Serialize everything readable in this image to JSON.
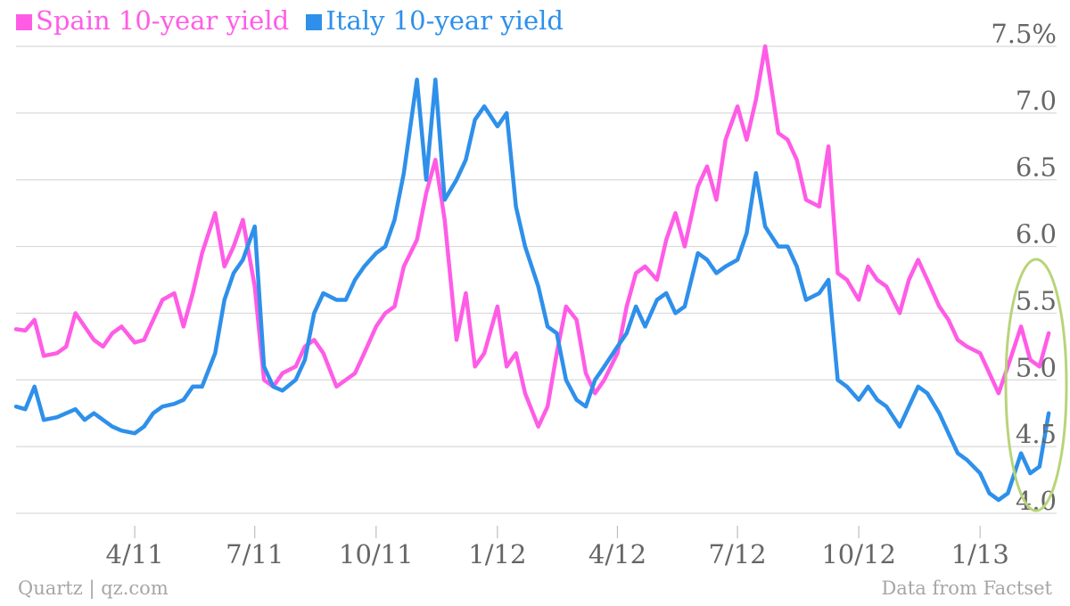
{
  "colors": {
    "spain": "#ff5ce6",
    "italy": "#2e90ea",
    "highlight_ellipse": "#b8d47a",
    "grid": "#d9d9d9",
    "tick_label": "#666666",
    "footer": "#a6a6a6"
  },
  "footer": {
    "source_left": "Quartz | qz.com",
    "source_right": "Data from Factset"
  },
  "chart_data": {
    "type": "line",
    "title": "",
    "xlabel": "",
    "ylabel": "",
    "ylim": [
      4.0,
      7.5
    ],
    "yticks": [
      {
        "value": 7.5,
        "label": "7.5%"
      },
      {
        "value": 7.0,
        "label": "7.0"
      },
      {
        "value": 6.5,
        "label": "6.5"
      },
      {
        "value": 6.0,
        "label": "6.0"
      },
      {
        "value": 5.5,
        "label": "5.5"
      },
      {
        "value": 5.0,
        "label": "5.0"
      },
      {
        "value": 4.5,
        "label": "4.5"
      },
      {
        "value": 4.0,
        "label": "4.0"
      }
    ],
    "xlim": [
      "2011-01-01",
      "2013-02-28"
    ],
    "xticks": [
      {
        "date": "2011-04-01",
        "label": "4/11"
      },
      {
        "date": "2011-07-01",
        "label": "7/11"
      },
      {
        "date": "2011-10-01",
        "label": "10/11"
      },
      {
        "date": "2012-01-01",
        "label": "1/12"
      },
      {
        "date": "2012-04-01",
        "label": "4/12"
      },
      {
        "date": "2012-07-01",
        "label": "7/12"
      },
      {
        "date": "2012-10-01",
        "label": "10/12"
      },
      {
        "date": "2013-01-01",
        "label": "1/13"
      }
    ],
    "grid": true,
    "legend_position": "top-left",
    "annotation": "ellipse highlighting Jan-Feb 2013",
    "series": [
      {
        "name": "Spain 10-year yield",
        "x": [
          "2011-01-01",
          "2011-01-08",
          "2011-01-15",
          "2011-01-22",
          "2011-02-01",
          "2011-02-08",
          "2011-02-15",
          "2011-02-22",
          "2011-03-01",
          "2011-03-08",
          "2011-03-15",
          "2011-03-22",
          "2011-04-01",
          "2011-04-08",
          "2011-04-15",
          "2011-04-22",
          "2011-05-01",
          "2011-05-08",
          "2011-05-15",
          "2011-05-22",
          "2011-06-01",
          "2011-06-08",
          "2011-06-15",
          "2011-06-22",
          "2011-07-01",
          "2011-07-08",
          "2011-07-15",
          "2011-07-22",
          "2011-08-01",
          "2011-08-08",
          "2011-08-15",
          "2011-08-22",
          "2011-09-01",
          "2011-09-08",
          "2011-09-15",
          "2011-09-22",
          "2011-10-01",
          "2011-10-08",
          "2011-10-15",
          "2011-10-22",
          "2011-11-01",
          "2011-11-08",
          "2011-11-15",
          "2011-11-22",
          "2011-12-01",
          "2011-12-08",
          "2011-12-15",
          "2011-12-22",
          "2012-01-01",
          "2012-01-08",
          "2012-01-15",
          "2012-01-22",
          "2012-02-01",
          "2012-02-08",
          "2012-02-15",
          "2012-02-22",
          "2012-03-01",
          "2012-03-08",
          "2012-03-15",
          "2012-03-22",
          "2012-04-01",
          "2012-04-08",
          "2012-04-15",
          "2012-04-22",
          "2012-05-01",
          "2012-05-08",
          "2012-05-15",
          "2012-05-22",
          "2012-06-01",
          "2012-06-08",
          "2012-06-15",
          "2012-06-22",
          "2012-07-01",
          "2012-07-08",
          "2012-07-15",
          "2012-07-22",
          "2012-08-01",
          "2012-08-08",
          "2012-08-15",
          "2012-08-22",
          "2012-09-01",
          "2012-09-08",
          "2012-09-15",
          "2012-09-22",
          "2012-10-01",
          "2012-10-08",
          "2012-10-15",
          "2012-10-22",
          "2012-11-01",
          "2012-11-08",
          "2012-11-15",
          "2012-11-22",
          "2012-12-01",
          "2012-12-08",
          "2012-12-15",
          "2012-12-22",
          "2013-01-01",
          "2013-01-08",
          "2013-01-15",
          "2013-01-22",
          "2013-02-01",
          "2013-02-08",
          "2013-02-15",
          "2013-02-22"
        ],
        "values": [
          5.38,
          5.37,
          5.45,
          5.18,
          5.2,
          5.25,
          5.5,
          5.4,
          5.3,
          5.25,
          5.35,
          5.4,
          5.28,
          5.3,
          5.45,
          5.6,
          5.65,
          5.4,
          5.65,
          5.95,
          6.25,
          5.85,
          6.0,
          6.2,
          5.7,
          5.0,
          4.95,
          5.05,
          5.1,
          5.25,
          5.3,
          5.2,
          4.95,
          5.0,
          5.05,
          5.2,
          5.4,
          5.5,
          5.55,
          5.85,
          6.05,
          6.4,
          6.65,
          6.2,
          5.3,
          5.65,
          5.1,
          5.2,
          5.55,
          5.1,
          5.2,
          4.9,
          4.65,
          4.8,
          5.2,
          5.55,
          5.45,
          5.05,
          4.9,
          5.0,
          5.2,
          5.55,
          5.8,
          5.85,
          5.75,
          6.05,
          6.25,
          6.0,
          6.45,
          6.6,
          6.35,
          6.8,
          7.05,
          6.8,
          7.1,
          7.5,
          6.85,
          6.8,
          6.65,
          6.35,
          6.3,
          6.75,
          5.8,
          5.75,
          5.6,
          5.85,
          5.75,
          5.7,
          5.5,
          5.75,
          5.9,
          5.75,
          5.55,
          5.45,
          5.3,
          5.25,
          5.2,
          5.05,
          4.9,
          5.1,
          5.4,
          5.15,
          5.1,
          5.35
        ]
      },
      {
        "name": "Italy 10-year yield",
        "x": [
          "2011-01-01",
          "2011-01-08",
          "2011-01-15",
          "2011-01-22",
          "2011-02-01",
          "2011-02-08",
          "2011-02-15",
          "2011-02-22",
          "2011-03-01",
          "2011-03-08",
          "2011-03-15",
          "2011-03-22",
          "2011-04-01",
          "2011-04-08",
          "2011-04-15",
          "2011-04-22",
          "2011-05-01",
          "2011-05-08",
          "2011-05-15",
          "2011-05-22",
          "2011-06-01",
          "2011-06-08",
          "2011-06-15",
          "2011-06-22",
          "2011-07-01",
          "2011-07-08",
          "2011-07-15",
          "2011-07-22",
          "2011-08-01",
          "2011-08-08",
          "2011-08-15",
          "2011-08-22",
          "2011-09-01",
          "2011-09-08",
          "2011-09-15",
          "2011-09-22",
          "2011-10-01",
          "2011-10-08",
          "2011-10-15",
          "2011-10-22",
          "2011-11-01",
          "2011-11-08",
          "2011-11-15",
          "2011-11-22",
          "2011-12-01",
          "2011-12-08",
          "2011-12-15",
          "2011-12-22",
          "2012-01-01",
          "2012-01-08",
          "2012-01-15",
          "2012-01-22",
          "2012-02-01",
          "2012-02-08",
          "2012-02-15",
          "2012-02-22",
          "2012-03-01",
          "2012-03-08",
          "2012-03-15",
          "2012-03-22",
          "2012-04-01",
          "2012-04-08",
          "2012-04-15",
          "2012-04-22",
          "2012-05-01",
          "2012-05-08",
          "2012-05-15",
          "2012-05-22",
          "2012-06-01",
          "2012-06-08",
          "2012-06-15",
          "2012-06-22",
          "2012-07-01",
          "2012-07-08",
          "2012-07-15",
          "2012-07-22",
          "2012-08-01",
          "2012-08-08",
          "2012-08-15",
          "2012-08-22",
          "2012-09-01",
          "2012-09-08",
          "2012-09-15",
          "2012-09-22",
          "2012-10-01",
          "2012-10-08",
          "2012-10-15",
          "2012-10-22",
          "2012-11-01",
          "2012-11-08",
          "2012-11-15",
          "2012-11-22",
          "2012-12-01",
          "2012-12-08",
          "2012-12-15",
          "2012-12-22",
          "2013-01-01",
          "2013-01-08",
          "2013-01-15",
          "2013-01-22",
          "2013-02-01",
          "2013-02-08",
          "2013-02-15",
          "2013-02-22"
        ],
        "values": [
          4.8,
          4.78,
          4.95,
          4.7,
          4.72,
          4.75,
          4.78,
          4.7,
          4.75,
          4.7,
          4.65,
          4.62,
          4.6,
          4.65,
          4.75,
          4.8,
          4.82,
          4.85,
          4.95,
          4.95,
          5.2,
          5.6,
          5.8,
          5.9,
          6.15,
          5.1,
          4.95,
          4.92,
          5.0,
          5.15,
          5.5,
          5.65,
          5.6,
          5.6,
          5.75,
          5.85,
          5.95,
          6.0,
          6.2,
          6.55,
          7.25,
          6.5,
          7.25,
          6.35,
          6.5,
          6.65,
          6.95,
          7.05,
          6.9,
          7.0,
          6.3,
          6.0,
          5.7,
          5.4,
          5.35,
          5.0,
          4.85,
          4.8,
          5.0,
          5.1,
          5.25,
          5.35,
          5.55,
          5.4,
          5.6,
          5.65,
          5.5,
          5.55,
          5.95,
          5.9,
          5.8,
          5.85,
          5.9,
          6.1,
          6.55,
          6.15,
          6.0,
          6.0,
          5.85,
          5.6,
          5.65,
          5.75,
          5.0,
          4.95,
          4.85,
          4.95,
          4.85,
          4.8,
          4.65,
          4.8,
          4.95,
          4.9,
          4.75,
          4.6,
          4.45,
          4.4,
          4.3,
          4.15,
          4.1,
          4.15,
          4.45,
          4.3,
          4.35,
          4.75
        ]
      }
    ]
  }
}
